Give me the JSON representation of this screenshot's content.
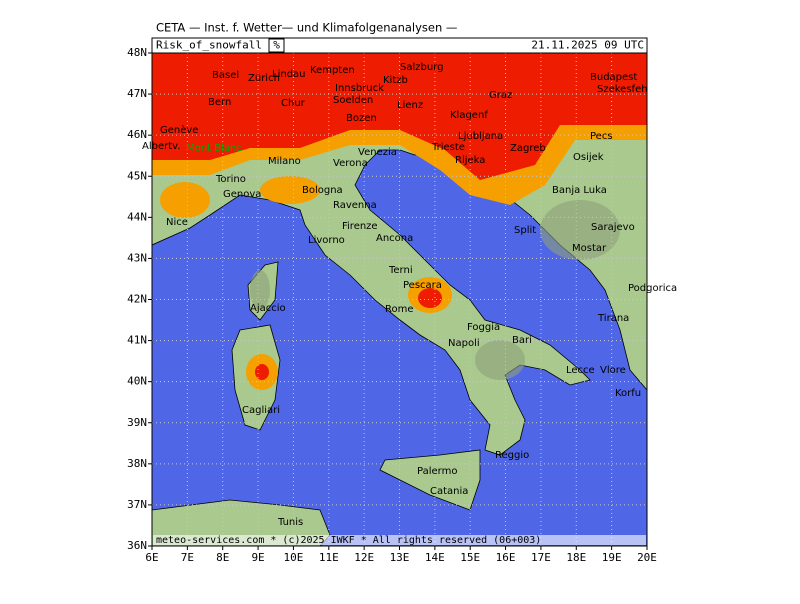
{
  "header": "CETA — Inst. f. Wetter— und Klimafolgenanalysen —",
  "title": "Risk_of_snowfall",
  "unit": "%",
  "date": "21.11.2025 09 UTC",
  "footer": "meteo-services.com * (c)2025 IWKF * All rights reserved (06+003)",
  "lat_labels": [
    "48N",
    "47N",
    "46N",
    "45N",
    "44N",
    "43N",
    "42N",
    "41N",
    "40N",
    "39N",
    "38N",
    "37N",
    "36N"
  ],
  "lon_labels": [
    "6E",
    "7E",
    "8E",
    "9E",
    "10E",
    "11E",
    "12E",
    "13E",
    "14E",
    "15E",
    "16E",
    "17E",
    "18E",
    "19E",
    "20E"
  ],
  "cities": [
    "Basel",
    "Zürich",
    "Lindau",
    "Kempten",
    "Salzburg",
    "Kitzb",
    "Innsbruck",
    "Bern",
    "Chur",
    "Soelden",
    "Lienz",
    "Graz",
    "Budapest",
    "Szekesfeh",
    "Genève",
    "Bozen",
    "Klagenf",
    "Ljubljana",
    "Pecs",
    "Albertv.",
    "Mont Blanc",
    "Milano",
    "Verona",
    "Venezia",
    "Trieste",
    "Zagreb",
    "Osijek",
    "Rijeka",
    "Torino",
    "Banja Luka",
    "Genova",
    "Bologna",
    "Ravenna",
    "Sarajevo",
    "Nice",
    "Firenze",
    "Split",
    "Ancona",
    "Mostar",
    "Livorno",
    "Terni",
    "Pescara",
    "Podgorica",
    "Ajaccio",
    "Rome",
    "Tirana",
    "Foggia",
    "Bari",
    "Napoli",
    "Lecce",
    "Vlore",
    "Cagliari",
    "Korfu",
    "Reggio",
    "Palermo",
    "Catania",
    "Tunis"
  ]
}
